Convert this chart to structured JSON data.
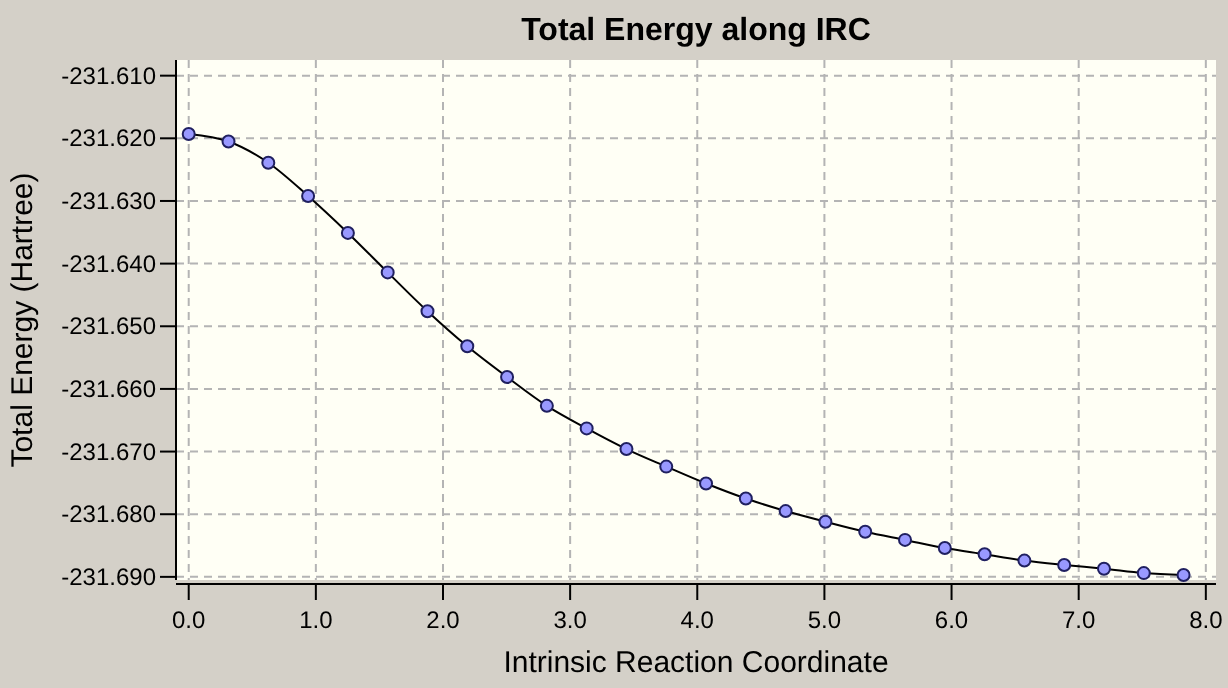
{
  "chart_data": {
    "type": "line",
    "title": "Total Energy along IRC",
    "xlabel": "Intrinsic Reaction Coordinate",
    "ylabel": "Total Energy (Hartree)",
    "x": [
      0,
      0.313,
      0.626,
      0.939,
      1.252,
      1.565,
      1.878,
      2.191,
      2.504,
      2.817,
      3.13,
      3.443,
      3.756,
      4.069,
      4.382,
      4.695,
      5.008,
      5.321,
      5.634,
      5.947,
      6.26,
      6.573,
      6.886,
      7.199,
      7.512,
      7.825
    ],
    "series": [
      {
        "color": "#000000",
        "values": [
          -231.6193,
          -231.6205,
          -231.6239,
          -231.6292,
          -231.6351,
          -231.6414,
          -231.6476,
          -231.6532,
          -231.6581,
          -231.6627,
          -231.6663,
          -231.6696,
          -231.6724,
          -231.6751,
          -231.6775,
          -231.6795,
          -231.6812,
          -231.6828,
          -231.6841,
          -231.6854,
          -231.6864,
          -231.6874,
          -231.6881,
          -231.6887,
          -231.6894,
          -231.6897
        ]
      }
    ],
    "xlim": [
      -0.1,
      8.08
    ],
    "ylim": [
      -231.6905,
      -231.6075
    ],
    "xticks": [
      {
        "value": 0,
        "label": "0.0"
      },
      {
        "value": 1,
        "label": "1.0"
      },
      {
        "value": 2,
        "label": "2.0"
      },
      {
        "value": 3,
        "label": "3.0"
      },
      {
        "value": 4,
        "label": "4.0"
      },
      {
        "value": 5,
        "label": "5.0"
      },
      {
        "value": 6,
        "label": "6.0"
      },
      {
        "value": 7,
        "label": "7.0"
      },
      {
        "value": 8,
        "label": "8.0"
      }
    ],
    "yticks": [
      {
        "value": -231.61,
        "label": "-231.610"
      },
      {
        "value": -231.62,
        "label": "-231.620"
      },
      {
        "value": -231.63,
        "label": "-231.630"
      },
      {
        "value": -231.64,
        "label": "-231.640"
      },
      {
        "value": -231.65,
        "label": "-231.650"
      },
      {
        "value": -231.66,
        "label": "-231.660"
      },
      {
        "value": -231.67,
        "label": "-231.670"
      },
      {
        "value": -231.68,
        "label": "-231.680"
      },
      {
        "value": -231.69,
        "label": "-231.690"
      }
    ],
    "grid": true,
    "marker": "circle",
    "line_style": "solid"
  }
}
